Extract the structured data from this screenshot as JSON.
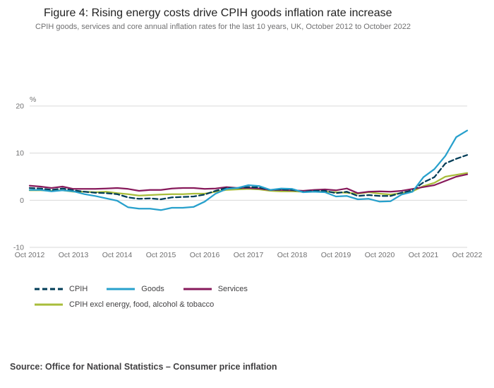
{
  "header": {
    "title": "Figure 4: Rising energy costs drive CPIH goods inflation rate increase",
    "subtitle": "CPIH goods, services and core annual inflation rates for the last 10 years, UK, October 2012 to October 2022"
  },
  "source_text": "Source: Office for National Statistics – Consumer price inflation",
  "colors": {
    "grid": "#d9d9d9",
    "tick_text": "#707071",
    "cpih": "#003c57",
    "goods": "#27a0cc",
    "services": "#871a5b",
    "core": "#a8bd3a"
  },
  "chart_data": {
    "type": "line",
    "title": "Figure 4: Rising energy costs drive CPIH goods inflation rate increase",
    "unit_label": "%",
    "ylim": [
      -10,
      20
    ],
    "yticks": [
      20,
      10,
      0,
      -10
    ],
    "grid": "horizontal-only",
    "legend_position": "bottom",
    "x_tick_labels": [
      "Oct 2012",
      "Oct 2013",
      "Oct 2014",
      "Oct 2015",
      "Oct 2016",
      "Oct 2017",
      "Oct 2018",
      "Oct 2019",
      "Oct 2020",
      "Oct 2021",
      "Oct 2022"
    ],
    "x_note": "quarterly points from Oct 2012 to Oct 2022",
    "series": [
      {
        "name": "CPIH",
        "color": "#003c57",
        "dash": "7 4",
        "values": [
          2.6,
          2.5,
          2.2,
          2.5,
          2.1,
          1.8,
          1.6,
          1.5,
          1.3,
          0.6,
          0.3,
          0.4,
          0.2,
          0.6,
          0.7,
          0.8,
          1.2,
          2.0,
          2.6,
          2.6,
          2.8,
          2.7,
          2.2,
          2.3,
          2.2,
          1.8,
          2.0,
          2.0,
          1.5,
          1.8,
          0.9,
          1.1,
          0.9,
          0.9,
          1.6,
          2.1,
          3.8,
          4.9,
          7.8,
          8.8,
          9.6
        ]
      },
      {
        "name": "Goods",
        "color": "#27a0cc",
        "dash": "",
        "values": [
          2.2,
          2.2,
          1.9,
          2.1,
          1.9,
          1.3,
          0.9,
          0.4,
          -0.1,
          -1.5,
          -1.8,
          -1.8,
          -2.1,
          -1.6,
          -1.6,
          -1.4,
          -0.3,
          1.4,
          2.4,
          2.6,
          3.2,
          3.0,
          2.2,
          2.5,
          2.4,
          1.7,
          1.8,
          1.7,
          0.8,
          0.9,
          0.2,
          0.3,
          -0.3,
          -0.2,
          1.2,
          1.8,
          4.9,
          6.6,
          9.4,
          13.4,
          14.8
        ]
      },
      {
        "name": "Services",
        "color": "#871a5b",
        "dash": "",
        "values": [
          3.1,
          2.9,
          2.6,
          2.9,
          2.4,
          2.4,
          2.4,
          2.5,
          2.6,
          2.4,
          2.0,
          2.2,
          2.2,
          2.5,
          2.6,
          2.6,
          2.4,
          2.5,
          2.8,
          2.6,
          2.6,
          2.5,
          2.2,
          2.2,
          2.1,
          2.0,
          2.2,
          2.3,
          2.1,
          2.5,
          1.5,
          1.8,
          1.9,
          1.8,
          2.0,
          2.4,
          2.8,
          3.2,
          4.1,
          5.0,
          5.5
        ]
      },
      {
        "name": "CPIH excl energy, food, alcohol & tobacco",
        "color": "#a8bd3a",
        "dash": "",
        "values": [
          2.1,
          2.1,
          2.0,
          2.1,
          1.8,
          1.8,
          1.7,
          1.8,
          1.5,
          1.3,
          1.0,
          1.1,
          1.2,
          1.3,
          1.3,
          1.4,
          1.4,
          1.8,
          2.2,
          2.3,
          2.4,
          2.3,
          2.0,
          1.9,
          1.9,
          1.8,
          1.8,
          1.8,
          1.7,
          1.6,
          1.4,
          1.7,
          1.4,
          1.2,
          1.5,
          1.9,
          3.0,
          3.7,
          5.0,
          5.4,
          5.8
        ]
      }
    ]
  }
}
